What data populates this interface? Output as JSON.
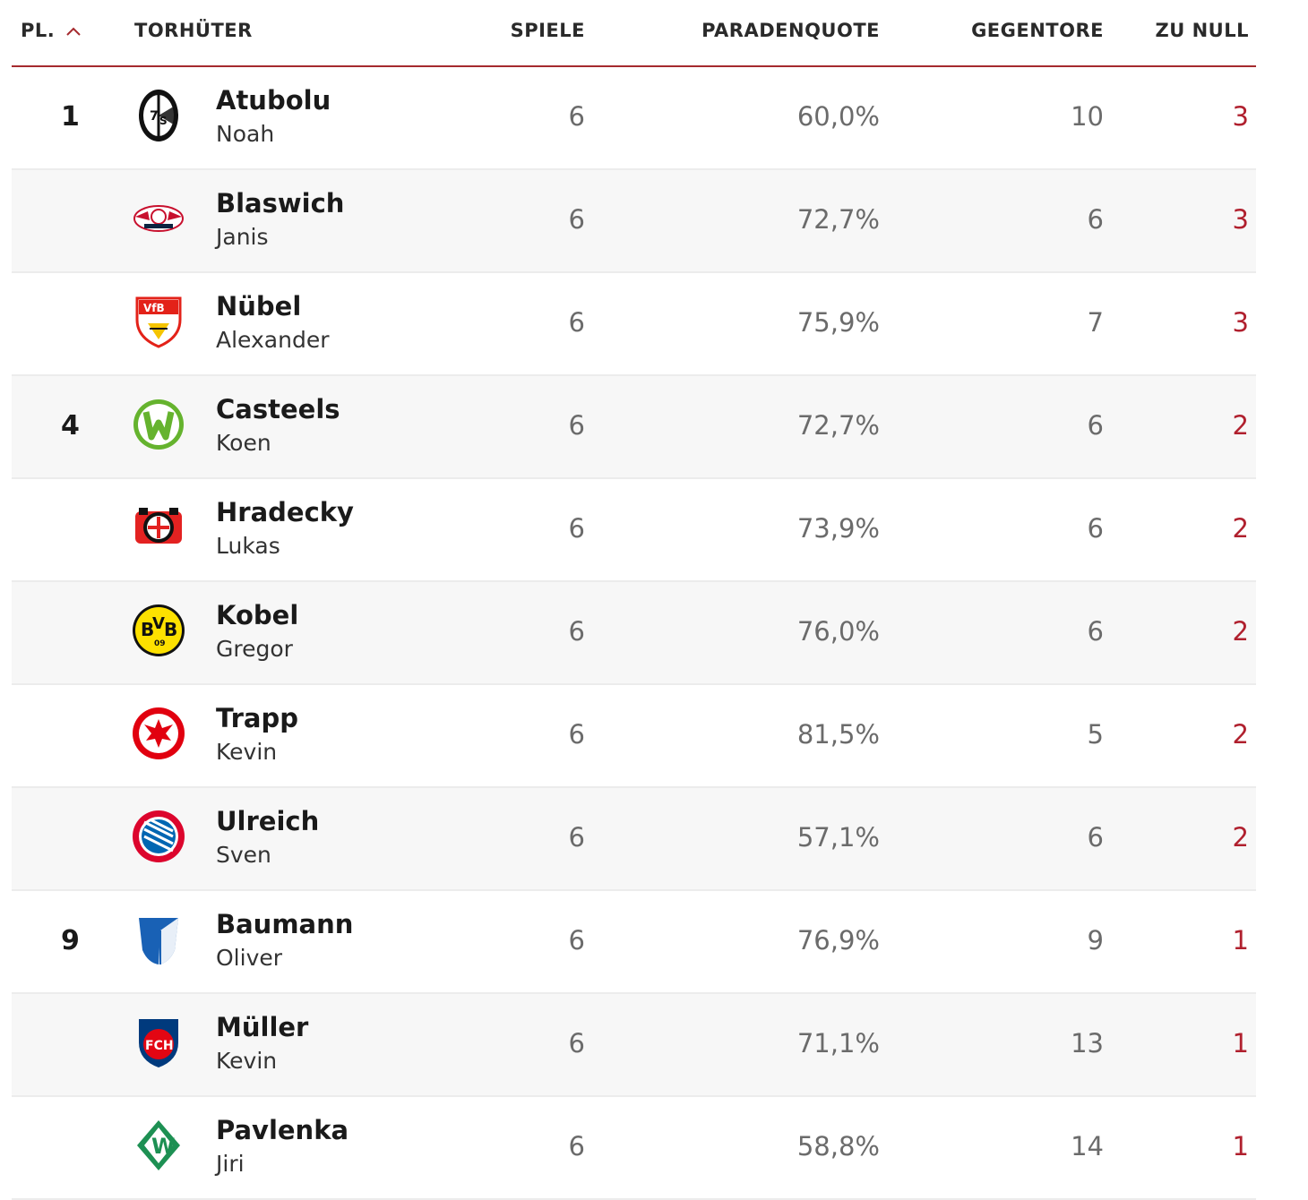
{
  "header": {
    "rank": "PL.",
    "keeper": "TORHÜTER",
    "games": "SPIELE",
    "save_rate": "PARADENQUOTE",
    "goals_against": "GEGENTORE",
    "clean_sheets": "ZU NULL"
  },
  "colors": {
    "accent": "#a52a2e",
    "clean_sheet_value": "#b0202e"
  },
  "rows": [
    {
      "rank": "1",
      "last": "Atubolu",
      "first": "Noah",
      "club_icon": "freiburg-crest-icon",
      "games": "6",
      "save": "60,0%",
      "against": "10",
      "clean": "3"
    },
    {
      "rank": "",
      "last": "Blaswich",
      "first": "Janis",
      "club_icon": "leipzig-crest-icon",
      "games": "6",
      "save": "72,7%",
      "against": "6",
      "clean": "3"
    },
    {
      "rank": "",
      "last": "Nübel",
      "first": "Alexander",
      "club_icon": "stuttgart-crest-icon",
      "games": "6",
      "save": "75,9%",
      "against": "7",
      "clean": "3"
    },
    {
      "rank": "4",
      "last": "Casteels",
      "first": "Koen",
      "club_icon": "wolfsburg-crest-icon",
      "games": "6",
      "save": "72,7%",
      "against": "6",
      "clean": "2"
    },
    {
      "rank": "",
      "last": "Hradecky",
      "first": "Lukas",
      "club_icon": "leverkusen-crest-icon",
      "games": "6",
      "save": "73,9%",
      "against": "6",
      "clean": "2"
    },
    {
      "rank": "",
      "last": "Kobel",
      "first": "Gregor",
      "club_icon": "dortmund-crest-icon",
      "games": "6",
      "save": "76,0%",
      "against": "6",
      "clean": "2"
    },
    {
      "rank": "",
      "last": "Trapp",
      "first": "Kevin",
      "club_icon": "frankfurt-crest-icon",
      "games": "6",
      "save": "81,5%",
      "against": "5",
      "clean": "2"
    },
    {
      "rank": "",
      "last": "Ulreich",
      "first": "Sven",
      "club_icon": "bayern-crest-icon",
      "games": "6",
      "save": "57,1%",
      "against": "6",
      "clean": "2"
    },
    {
      "rank": "9",
      "last": "Baumann",
      "first": "Oliver",
      "club_icon": "hoffenheim-crest-icon",
      "games": "6",
      "save": "76,9%",
      "against": "9",
      "clean": "1"
    },
    {
      "rank": "",
      "last": "Müller",
      "first": "Kevin",
      "club_icon": "heidenheim-crest-icon",
      "games": "6",
      "save": "71,1%",
      "against": "13",
      "clean": "1"
    },
    {
      "rank": "",
      "last": "Pavlenka",
      "first": "Jiri",
      "club_icon": "bremen-crest-icon",
      "games": "6",
      "save": "58,8%",
      "against": "14",
      "clean": "1"
    }
  ]
}
